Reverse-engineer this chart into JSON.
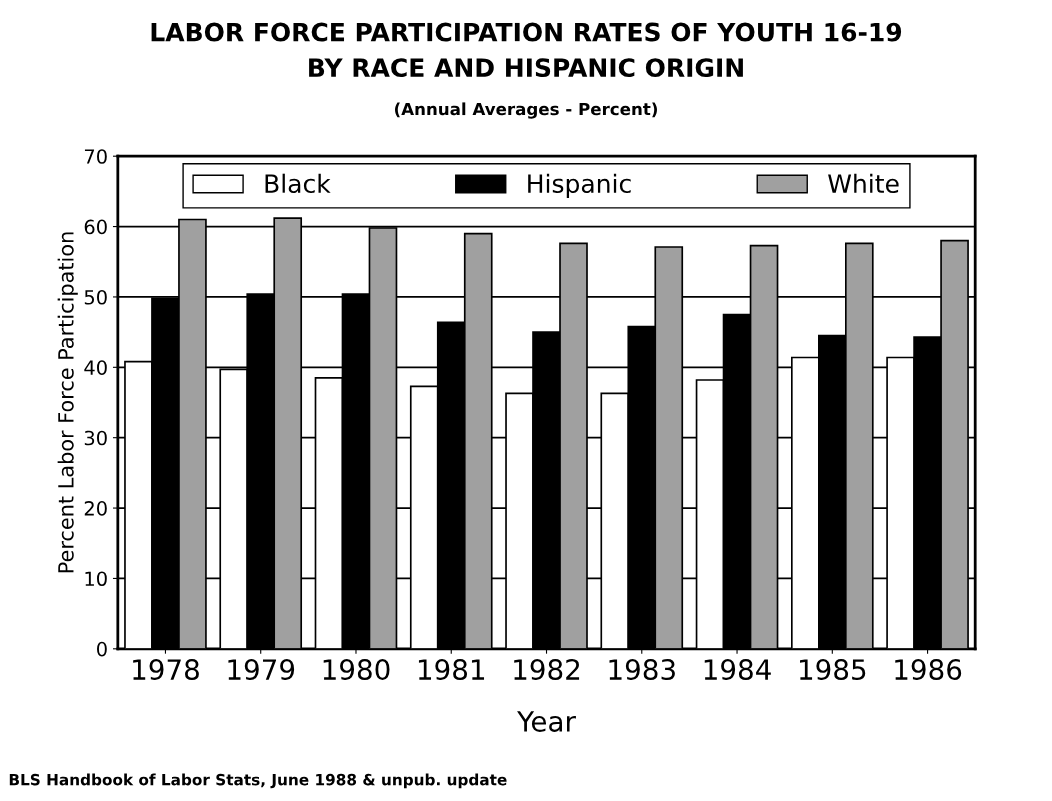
{
  "chart_data": {
    "type": "bar",
    "title": "LABOR FORCE PARTICIPATION RATES OF YOUTH 16-19\nBY RACE AND HISPANIC ORIGIN",
    "subtitle": "(Annual Averages - Percent)",
    "xlabel": "Year",
    "ylabel": "Percent Labor Force Participation",
    "categories": [
      "1978",
      "1979",
      "1980",
      "1981",
      "1982",
      "1983",
      "1984",
      "1985",
      "1986"
    ],
    "series": [
      {
        "name": "Black",
        "color": "#ffffff",
        "values": [
          40.8,
          39.7,
          38.5,
          37.3,
          36.3,
          36.3,
          38.2,
          41.4,
          41.4
        ]
      },
      {
        "name": "Hispanic",
        "color": "#000000",
        "values": [
          49.8,
          50.4,
          50.4,
          46.4,
          45.0,
          45.8,
          47.5,
          44.5,
          44.3
        ]
      },
      {
        "name": "White",
        "color": "#a0a0a0",
        "values": [
          61.0,
          61.2,
          59.8,
          59.0,
          57.6,
          57.1,
          57.3,
          57.6,
          58.0
        ]
      }
    ],
    "ylim": [
      0,
      70
    ],
    "yticks": [
      0,
      10,
      20,
      30,
      40,
      50,
      60,
      70
    ],
    "grid": "y",
    "legend": "top",
    "annotations": [
      "BLS Handbook of Labor Stats, June 1988 & unpub. update"
    ]
  }
}
